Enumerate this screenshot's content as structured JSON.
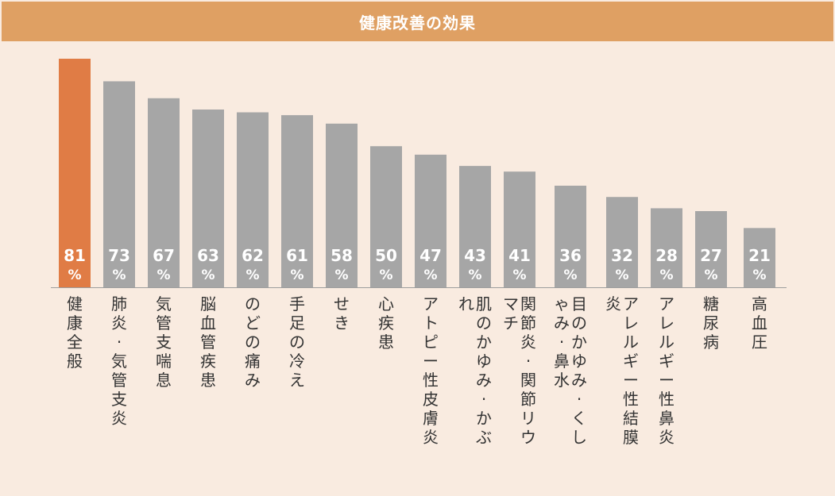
{
  "title": "健康改善の効果",
  "colors": {
    "background": "#f9ebe0",
    "title_bar": "#dfa063",
    "highlight_bar": "#e07c45",
    "bar": "#a6a6a6",
    "axis": "#9e9e9e"
  },
  "chart_data": {
    "type": "bar",
    "categories": [
      "健康全般",
      "肺炎·気管支炎",
      "気管支喘息",
      "脳血管疾患",
      "のどの痛み",
      "手足の冷え",
      "せき",
      "心疾患",
      "アトピー性皮膚炎",
      "肌のかゆみ·かぶれ",
      "関節炎·関節リウマチ",
      "目のかゆみ·くしゃみ·鼻水",
      "アレルギー性結膜炎",
      "アレルギー性鼻炎",
      "糖尿病",
      "高血圧"
    ],
    "values": [
      81,
      73,
      67,
      63,
      62,
      61,
      58,
      50,
      47,
      43,
      41,
      36,
      32,
      28,
      27,
      21
    ],
    "value_labels": [
      "81",
      "73",
      "67",
      "63",
      "62",
      "61",
      "58",
      "50",
      "47",
      "43",
      "41",
      "36",
      "32",
      "28",
      "27",
      "21"
    ],
    "unit": "%",
    "highlight_index": 0,
    "ylim": [
      0,
      81
    ],
    "grid": false,
    "legend": "none"
  }
}
